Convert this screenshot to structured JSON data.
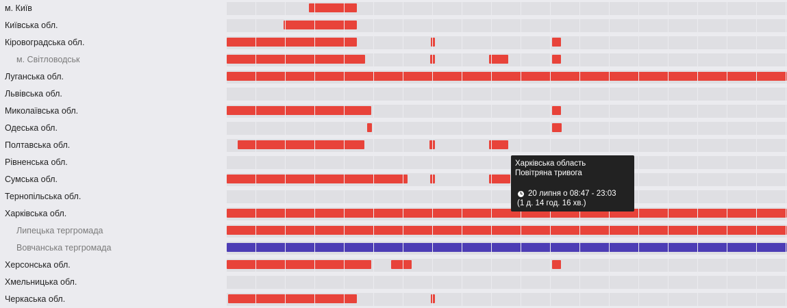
{
  "colors": {
    "alert": "#e8433a",
    "other": "#4d3db5",
    "track": "#dfdfe3"
  },
  "rows": [
    {
      "label": "м. Київ",
      "sub": false,
      "bars": [
        {
          "start": 451,
          "end": 521,
          "color": "alert"
        }
      ]
    },
    {
      "label": "Київська обл.",
      "sub": false,
      "bars": [
        {
          "start": 414,
          "end": 521,
          "color": "alert"
        }
      ]
    },
    {
      "label": "Кіровоградська обл.",
      "sub": false,
      "bars": [
        {
          "start": 331,
          "end": 521,
          "color": "alert"
        },
        {
          "start": 629,
          "end": 635,
          "color": "alert"
        },
        {
          "start": 806,
          "end": 819,
          "color": "alert"
        }
      ]
    },
    {
      "label": "м. Світловодськ",
      "sub": true,
      "bars": [
        {
          "start": 331,
          "end": 533,
          "color": "alert"
        },
        {
          "start": 628,
          "end": 635,
          "color": "alert"
        },
        {
          "start": 714,
          "end": 742,
          "color": "alert"
        },
        {
          "start": 806,
          "end": 819,
          "color": "alert"
        }
      ]
    },
    {
      "label": "Луганська обл.",
      "sub": false,
      "bars": [
        {
          "start": 331,
          "end": 1149,
          "color": "alert"
        }
      ]
    },
    {
      "label": "Львівська обл.",
      "sub": false,
      "bars": []
    },
    {
      "label": "Миколаївська обл.",
      "sub": false,
      "bars": [
        {
          "start": 331,
          "end": 542,
          "color": "alert"
        },
        {
          "start": 806,
          "end": 819,
          "color": "alert"
        }
      ]
    },
    {
      "label": "Одеська обл.",
      "sub": false,
      "bars": [
        {
          "start": 536,
          "end": 543,
          "color": "alert"
        },
        {
          "start": 806,
          "end": 820,
          "color": "alert"
        }
      ]
    },
    {
      "label": "Полтавська обл.",
      "sub": false,
      "bars": [
        {
          "start": 347,
          "end": 532,
          "color": "alert"
        },
        {
          "start": 627,
          "end": 635,
          "color": "alert"
        },
        {
          "start": 714,
          "end": 742,
          "color": "alert"
        }
      ]
    },
    {
      "label": "Рівненська обл.",
      "sub": false,
      "bars": []
    },
    {
      "label": "Сумська обл.",
      "sub": false,
      "bars": [
        {
          "start": 331,
          "end": 595,
          "color": "alert"
        },
        {
          "start": 628,
          "end": 635,
          "color": "alert"
        },
        {
          "start": 714,
          "end": 745,
          "color": "alert"
        }
      ]
    },
    {
      "label": "Тернопільська обл.",
      "sub": false,
      "bars": []
    },
    {
      "label": "Харківська обл.",
      "sub": false,
      "bars": [
        {
          "start": 331,
          "end": 1149,
          "color": "alert"
        }
      ]
    },
    {
      "label": "Липецька тергромада",
      "sub": true,
      "bars": [
        {
          "start": 331,
          "end": 1149,
          "color": "alert"
        }
      ]
    },
    {
      "label": "Вовчанська тергромада",
      "sub": true,
      "bars": [
        {
          "start": 331,
          "end": 1149,
          "color": "other"
        }
      ]
    },
    {
      "label": "Херсонська обл.",
      "sub": false,
      "bars": [
        {
          "start": 331,
          "end": 542,
          "color": "alert"
        },
        {
          "start": 571,
          "end": 601,
          "color": "alert"
        },
        {
          "start": 806,
          "end": 819,
          "color": "alert"
        }
      ]
    },
    {
      "label": "Хмельницька обл.",
      "sub": false,
      "bars": []
    },
    {
      "label": "Черкаська обл.",
      "sub": false,
      "bars": [
        {
          "start": 333,
          "end": 521,
          "color": "alert"
        },
        {
          "start": 629,
          "end": 635,
          "color": "alert"
        }
      ]
    }
  ],
  "tooltip": {
    "title": "Харківська область",
    "type": "Повітряна тривога",
    "time": "20 липня о 08:47 - 23:03",
    "duration": "(1 д. 14 год. 16 хв.)",
    "icon": "clock-icon"
  }
}
